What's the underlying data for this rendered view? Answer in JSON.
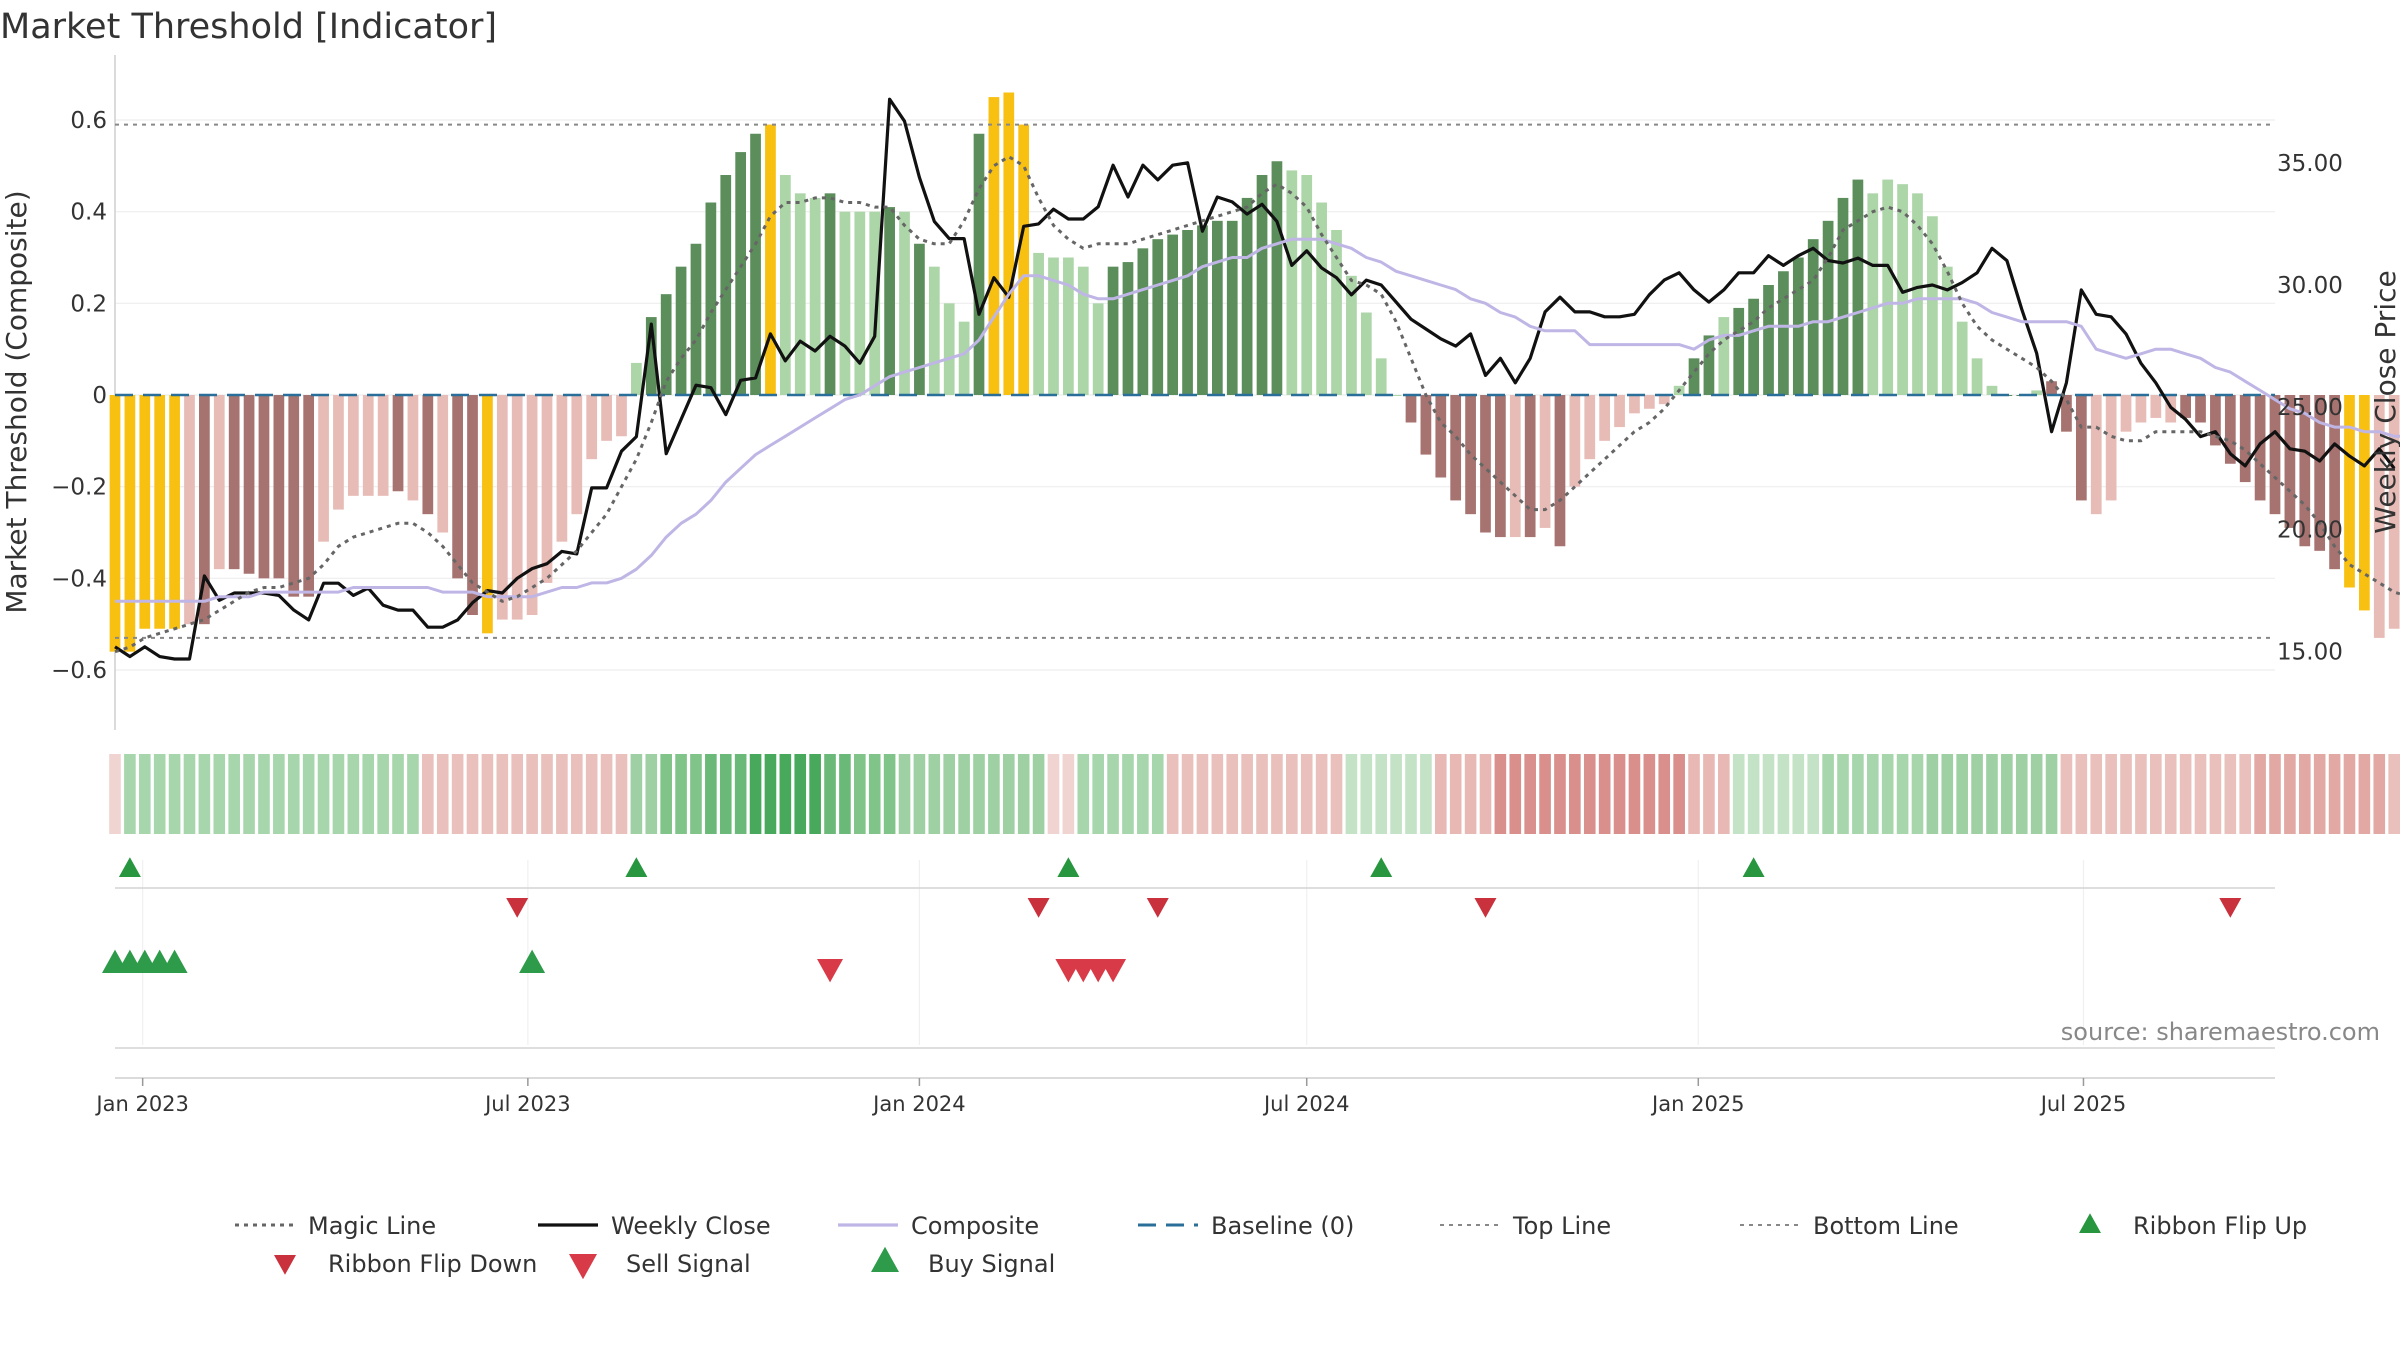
{
  "title": "Market Threshold [Indicator]",
  "source": "source: sharemaestro.com",
  "colors": {
    "highlight": "#f8c010",
    "pos_strong": "#5c8e5c",
    "pos_weak": "#acd5a8",
    "neg_strong": "#a67370",
    "neg_weak": "#e7bbb6",
    "magic": "#666666",
    "close": "#111111",
    "composite": "#bfb6e6",
    "baseline": "#2a6f9a",
    "ref": "#888888",
    "buy": "#2e9b4a",
    "sell": "#d93a48",
    "flip_up": "#27963f",
    "flip_down": "#c9313d"
  },
  "chart_data": {
    "type": "bar",
    "title": "Market Threshold [Indicator]",
    "ylabel_left": "Market Threshold (Composite)",
    "ylabel_right": "Weekly Close Price",
    "xlim": [
      "2022-12-19",
      "2025-09-29"
    ],
    "ylim_left": [
      -0.72,
      0.72
    ],
    "ylim_right": [
      12.0,
      39.0
    ],
    "yticks_left": [
      {
        "v": 0.6,
        "label": "0.6"
      },
      {
        "v": 0.4,
        "label": "0.4"
      },
      {
        "v": 0.2,
        "label": "0.2"
      },
      {
        "v": 0,
        "label": "0"
      },
      {
        "v": -0.2,
        "label": "−0.2"
      },
      {
        "v": -0.4,
        "label": "−0.4"
      },
      {
        "v": -0.6,
        "label": "−0.6"
      }
    ],
    "yticks_right": [
      {
        "v": 35,
        "label": "35.00"
      },
      {
        "v": 30,
        "label": "30.00"
      },
      {
        "v": 25,
        "label": "25.00"
      },
      {
        "v": 20,
        "label": "20.00"
      },
      {
        "v": 15,
        "label": "15.00"
      }
    ],
    "xticks": [
      {
        "date": "2023-01-01",
        "label": "Jan 2023"
      },
      {
        "date": "2023-07-01",
        "label": "Jul 2023"
      },
      {
        "date": "2024-01-01",
        "label": "Jan 2024"
      },
      {
        "date": "2024-07-01",
        "label": "Jul 2024"
      },
      {
        "date": "2025-01-01",
        "label": "Jan 2025"
      },
      {
        "date": "2025-07-01",
        "label": "Jul 2025"
      }
    ],
    "start_date": "2022-12-19",
    "interval_days": 7,
    "grid": true,
    "legend_position": "bottom",
    "top_line": 0.59,
    "bottom_line": -0.53,
    "baseline": 0,
    "composite_bars": [
      -0.56,
      -0.56,
      -0.51,
      -0.51,
      -0.51,
      -0.5,
      -0.5,
      -0.38,
      -0.38,
      -0.39,
      -0.4,
      -0.4,
      -0.44,
      -0.44,
      -0.32,
      -0.25,
      -0.22,
      -0.22,
      -0.22,
      -0.21,
      -0.23,
      -0.26,
      -0.3,
      -0.4,
      -0.48,
      -0.52,
      -0.49,
      -0.49,
      -0.48,
      -0.41,
      -0.32,
      -0.26,
      -0.14,
      -0.1,
      -0.09,
      0.07,
      0.17,
      0.22,
      0.28,
      0.33,
      0.42,
      0.48,
      0.53,
      0.57,
      0.59,
      0.48,
      0.44,
      0.43,
      0.44,
      0.4,
      0.4,
      0.4,
      0.41,
      0.4,
      0.33,
      0.28,
      0.2,
      0.16,
      0.57,
      0.65,
      0.66,
      0.59,
      0.31,
      0.3,
      0.3,
      0.28,
      0.2,
      0.28,
      0.29,
      0.32,
      0.34,
      0.35,
      0.36,
      0.37,
      0.38,
      0.38,
      0.43,
      0.48,
      0.51,
      0.49,
      0.48,
      0.42,
      0.36,
      0.26,
      0.18,
      0.08,
      0.0,
      -0.06,
      -0.13,
      -0.18,
      -0.23,
      -0.26,
      -0.3,
      -0.31,
      -0.31,
      -0.31,
      -0.29,
      -0.33,
      -0.2,
      -0.14,
      -0.1,
      -0.07,
      -0.04,
      -0.03,
      -0.02,
      0.02,
      0.08,
      0.13,
      0.17,
      0.19,
      0.21,
      0.24,
      0.27,
      0.3,
      0.34,
      0.38,
      0.43,
      0.47,
      0.44,
      0.47,
      0.46,
      0.44,
      0.39,
      0.28,
      0.16,
      0.08,
      0.02,
      0.0,
      0.0,
      0.01,
      0.03,
      -0.08,
      -0.23,
      -0.26,
      -0.23,
      -0.08,
      -0.06,
      -0.05,
      -0.06,
      -0.05,
      -0.06,
      -0.11,
      -0.15,
      -0.19,
      -0.23,
      -0.26,
      -0.29,
      -0.33,
      -0.34,
      -0.38,
      -0.42,
      -0.47,
      -0.53,
      -0.51,
      -0.5,
      -0.49,
      -0.42
    ],
    "bar_colors": [
      "highlight",
      "highlight",
      "highlight",
      "highlight",
      "highlight",
      "neg_weak",
      "neg_strong",
      "neg_weak",
      "neg_strong",
      "neg_strong",
      "neg_strong",
      "neg_strong",
      "neg_strong",
      "neg_strong",
      "neg_weak",
      "neg_weak",
      "neg_weak",
      "neg_weak",
      "neg_weak",
      "neg_strong",
      "neg_weak",
      "neg_strong",
      "neg_weak",
      "neg_strong",
      "neg_strong",
      "highlight",
      "neg_weak",
      "neg_weak",
      "neg_weak",
      "neg_weak",
      "neg_weak",
      "neg_weak",
      "neg_weak",
      "neg_weak",
      "neg_weak",
      "pos_weak",
      "pos_strong",
      "pos_strong",
      "pos_strong",
      "pos_strong",
      "pos_strong",
      "pos_strong",
      "pos_strong",
      "pos_strong",
      "highlight",
      "pos_weak",
      "pos_weak",
      "pos_weak",
      "pos_strong",
      "pos_weak",
      "pos_weak",
      "pos_weak",
      "pos_strong",
      "pos_weak",
      "pos_strong",
      "pos_weak",
      "pos_weak",
      "pos_weak",
      "pos_strong",
      "highlight",
      "highlight",
      "highlight",
      "pos_weak",
      "pos_weak",
      "pos_weak",
      "pos_weak",
      "pos_weak",
      "pos_strong",
      "pos_strong",
      "pos_strong",
      "pos_strong",
      "pos_strong",
      "pos_strong",
      "pos_strong",
      "pos_strong",
      "pos_strong",
      "pos_strong",
      "pos_strong",
      "pos_strong",
      "pos_weak",
      "pos_weak",
      "pos_weak",
      "pos_weak",
      "pos_weak",
      "pos_weak",
      "pos_weak",
      "pos_weak",
      "neg_strong",
      "neg_strong",
      "neg_strong",
      "neg_strong",
      "neg_strong",
      "neg_strong",
      "neg_strong",
      "neg_weak",
      "neg_strong",
      "neg_weak",
      "neg_strong",
      "neg_weak",
      "neg_weak",
      "neg_weak",
      "neg_weak",
      "neg_weak",
      "neg_weak",
      "neg_weak",
      "pos_weak",
      "pos_strong",
      "pos_strong",
      "pos_weak",
      "pos_strong",
      "pos_strong",
      "pos_strong",
      "pos_strong",
      "pos_strong",
      "pos_strong",
      "pos_strong",
      "pos_strong",
      "pos_strong",
      "pos_weak",
      "pos_weak",
      "pos_weak",
      "pos_weak",
      "pos_weak",
      "pos_weak",
      "pos_weak",
      "pos_weak",
      "pos_weak",
      "pos_strong",
      "pos_strong",
      "pos_weak",
      "neg_strong",
      "neg_strong",
      "neg_strong",
      "neg_weak",
      "neg_weak",
      "neg_weak",
      "neg_weak",
      "neg_weak",
      "neg_weak",
      "neg_strong",
      "neg_strong",
      "neg_strong",
      "neg_strong",
      "neg_strong",
      "neg_strong",
      "neg_strong",
      "neg_strong",
      "neg_strong",
      "neg_strong",
      "neg_strong",
      "highlight",
      "highlight",
      "neg_weak",
      "neg_weak",
      "neg_weak"
    ],
    "series": [
      {
        "name": "Weekly Close",
        "axis": "right",
        "values": [
          15.2,
          14.8,
          15.2,
          14.8,
          14.7,
          14.7,
          18.1,
          17.1,
          17.4,
          17.4,
          17.4,
          17.3,
          16.7,
          16.3,
          17.8,
          17.8,
          17.3,
          17.6,
          16.9,
          16.7,
          16.7,
          16.0,
          16.0,
          16.3,
          17.0,
          17.5,
          17.4,
          18.0,
          18.4,
          18.6,
          19.1,
          19.0,
          21.7,
          21.7,
          23.2,
          23.8,
          28.4,
          23.1,
          24.5,
          25.9,
          25.8,
          24.7,
          26.1,
          26.2,
          28.0,
          26.9,
          27.7,
          27.3,
          27.9,
          27.5,
          26.8,
          27.9,
          37.6,
          36.7,
          34.4,
          32.6,
          31.9,
          31.9,
          28.8,
          30.3,
          29.5,
          32.4,
          32.5,
          33.1,
          32.7,
          32.7,
          33.2,
          34.9,
          33.6,
          34.9,
          34.3,
          34.9,
          35.0,
          32.2,
          33.6,
          33.4,
          32.9,
          33.3,
          32.6,
          30.8,
          31.4,
          30.7,
          30.3,
          29.6,
          30.2,
          30.0,
          29.3,
          28.6,
          28.2,
          27.8,
          27.5,
          28.0,
          26.3,
          27.0,
          26.0,
          27.0,
          28.9,
          29.5,
          28.9,
          28.9,
          28.7,
          28.7,
          28.8,
          29.6,
          30.2,
          30.5,
          29.8,
          29.3,
          29.8,
          30.5,
          30.5,
          31.2,
          30.8,
          31.2,
          31.5,
          31.0,
          30.9,
          31.1,
          30.8,
          30.8,
          29.7,
          29.9,
          30.0,
          29.8,
          30.1,
          30.5,
          31.5,
          31.0,
          29.0,
          27.2,
          24.0,
          26.0,
          29.8,
          28.8,
          28.7,
          28.0,
          26.8,
          26.0,
          25.0,
          24.5,
          23.8,
          24.0,
          23.1,
          22.6,
          23.5,
          24.0,
          23.3,
          23.2,
          22.8,
          23.5,
          23.0,
          22.6,
          23.3,
          22.5
        ]
      },
      {
        "name": "Composite",
        "axis": "left",
        "values": [
          -0.45,
          -0.45,
          -0.45,
          -0.45,
          -0.45,
          -0.45,
          -0.45,
          -0.44,
          -0.44,
          -0.44,
          -0.43,
          -0.43,
          -0.43,
          -0.43,
          -0.43,
          -0.43,
          -0.42,
          -0.42,
          -0.42,
          -0.42,
          -0.42,
          -0.42,
          -0.43,
          -0.43,
          -0.43,
          -0.44,
          -0.44,
          -0.44,
          -0.44,
          -0.43,
          -0.42,
          -0.42,
          -0.41,
          -0.41,
          -0.4,
          -0.38,
          -0.35,
          -0.31,
          -0.28,
          -0.26,
          -0.23,
          -0.19,
          -0.16,
          -0.13,
          -0.11,
          -0.09,
          -0.07,
          -0.05,
          -0.03,
          -0.01,
          0.0,
          0.02,
          0.04,
          0.05,
          0.06,
          0.07,
          0.08,
          0.09,
          0.12,
          0.17,
          0.22,
          0.26,
          0.26,
          0.25,
          0.24,
          0.22,
          0.21,
          0.21,
          0.22,
          0.23,
          0.24,
          0.25,
          0.26,
          0.28,
          0.29,
          0.3,
          0.3,
          0.32,
          0.33,
          0.34,
          0.34,
          0.34,
          0.33,
          0.32,
          0.3,
          0.29,
          0.27,
          0.26,
          0.25,
          0.24,
          0.23,
          0.21,
          0.2,
          0.18,
          0.17,
          0.15,
          0.14,
          0.14,
          0.14,
          0.11,
          0.11,
          0.11,
          0.11,
          0.11,
          0.11,
          0.11,
          0.1,
          0.12,
          0.13,
          0.13,
          0.14,
          0.15,
          0.15,
          0.15,
          0.16,
          0.16,
          0.17,
          0.18,
          0.19,
          0.2,
          0.2,
          0.21,
          0.21,
          0.21,
          0.21,
          0.2,
          0.18,
          0.17,
          0.16,
          0.16,
          0.16,
          0.16,
          0.15,
          0.1,
          0.09,
          0.08,
          0.09,
          0.1,
          0.1,
          0.09,
          0.08,
          0.06,
          0.05,
          0.03,
          0.01,
          -0.01,
          -0.03,
          -0.04,
          -0.06,
          -0.07,
          -0.07,
          -0.08,
          -0.08,
          -0.09,
          -0.09,
          -0.1,
          -0.1,
          -0.1,
          -0.11
        ]
      },
      {
        "name": "Magic Line",
        "axis": "left",
        "values": [
          -0.56,
          -0.55,
          -0.53,
          -0.52,
          -0.51,
          -0.5,
          -0.49,
          -0.47,
          -0.45,
          -0.43,
          -0.42,
          -0.42,
          -0.41,
          -0.4,
          -0.37,
          -0.33,
          -0.31,
          -0.3,
          -0.29,
          -0.28,
          -0.28,
          -0.3,
          -0.33,
          -0.37,
          -0.41,
          -0.43,
          -0.45,
          -0.44,
          -0.42,
          -0.4,
          -0.37,
          -0.34,
          -0.3,
          -0.26,
          -0.2,
          -0.14,
          -0.06,
          0.03,
          0.08,
          0.12,
          0.18,
          0.23,
          0.28,
          0.33,
          0.39,
          0.42,
          0.42,
          0.43,
          0.43,
          0.42,
          0.42,
          0.41,
          0.41,
          0.37,
          0.34,
          0.33,
          0.33,
          0.38,
          0.45,
          0.5,
          0.52,
          0.5,
          0.43,
          0.37,
          0.34,
          0.32,
          0.33,
          0.33,
          0.33,
          0.34,
          0.35,
          0.36,
          0.37,
          0.38,
          0.39,
          0.4,
          0.41,
          0.44,
          0.46,
          0.44,
          0.41,
          0.35,
          0.3,
          0.25,
          0.24,
          0.22,
          0.16,
          0.08,
          0.0,
          -0.06,
          -0.09,
          -0.13,
          -0.16,
          -0.19,
          -0.22,
          -0.25,
          -0.25,
          -0.23,
          -0.2,
          -0.17,
          -0.14,
          -0.11,
          -0.08,
          -0.06,
          -0.03,
          0.01,
          0.05,
          0.09,
          0.12,
          0.14,
          0.16,
          0.19,
          0.21,
          0.23,
          0.25,
          0.3,
          0.36,
          0.38,
          0.4,
          0.41,
          0.4,
          0.37,
          0.33,
          0.27,
          0.2,
          0.15,
          0.12,
          0.1,
          0.08,
          0.06,
          0.03,
          -0.01,
          -0.07,
          -0.07,
          -0.09,
          -0.1,
          -0.1,
          -0.08,
          -0.08,
          -0.08,
          -0.08,
          -0.09,
          -0.1,
          -0.12,
          -0.15,
          -0.18,
          -0.21,
          -0.24,
          -0.28,
          -0.33,
          -0.37,
          -0.39,
          -0.41,
          -0.43,
          -0.44,
          -0.43
        ]
      }
    ],
    "ribbon": [
      "#f0d4d1",
      "#a7d6ad",
      "#a7d6ad",
      "#a7d6ad",
      "#a7d6ad",
      "#a7d6ad",
      "#a7d6ad",
      "#a7d6ad",
      "#a7d6ad",
      "#a7d6ad",
      "#a7d6ad",
      "#a7d6ad",
      "#a7d6ad",
      "#a7d6ad",
      "#a7d6ad",
      "#a7d6ad",
      "#a7d6ad",
      "#a7d6ad",
      "#a7d6ad",
      "#a7d6ad",
      "#a7d6ad",
      "#e9c0bb",
      "#e9c0bb",
      "#e9c0bb",
      "#e9c0bb",
      "#e9c0bb",
      "#e9c0bb",
      "#e9c0bb",
      "#e9c0bb",
      "#e9c0bb",
      "#e9c0bb",
      "#e9c0bb",
      "#e9c0bb",
      "#e9c0bb",
      "#e9c0bb",
      "#9ed0a4",
      "#9ed0a4",
      "#80c489",
      "#80c489",
      "#80c489",
      "#6ab978",
      "#6ab978",
      "#6ab978",
      "#48a85c",
      "#48a85c",
      "#48a85c",
      "#48a85c",
      "#48a85c",
      "#6ab978",
      "#6ab978",
      "#80c489",
      "#80c489",
      "#80c489",
      "#9ed0a4",
      "#9ed0a4",
      "#9ed0a4",
      "#9ed0a4",
      "#9ed0a4",
      "#9ed0a4",
      "#9ed0a4",
      "#9ed0a4",
      "#9ed0a4",
      "#9ed0a4",
      "#f0d4d1",
      "#f0d4d1",
      "#a7d6ad",
      "#a7d6ad",
      "#a7d6ad",
      "#a7d6ad",
      "#a7d6ad",
      "#a7d6ad",
      "#e9c0bb",
      "#e9c0bb",
      "#e9c0bb",
      "#e9c0bb",
      "#e9c0bb",
      "#e9c0bb",
      "#e9c0bb",
      "#e9c0bb",
      "#e9c0bb",
      "#e9c0bb",
      "#e9c0bb",
      "#e9c0bb",
      "#c4e2c5",
      "#c4e2c5",
      "#c4e2c5",
      "#c4e2c5",
      "#c4e2c5",
      "#c4e2c5",
      "#e8b9b4",
      "#e8b9b4",
      "#e8b9b4",
      "#e8b9b4",
      "#d98f8b",
      "#d98f8b",
      "#d98f8b",
      "#d98f8b",
      "#d98f8b",
      "#d98f8b",
      "#d98f8b",
      "#d98f8b",
      "#d98f8b",
      "#d98f8b",
      "#d98f8b",
      "#d98f8b",
      "#d98f8b",
      "#e8b9b4",
      "#e8b9b4",
      "#e8b9b4",
      "#c4e2c5",
      "#c4e2c5",
      "#c4e2c5",
      "#c4e2c5",
      "#c4e2c5",
      "#c4e2c5",
      "#a7d6ad",
      "#a7d6ad",
      "#a7d6ad",
      "#a7d6ad",
      "#a7d6ad",
      "#a7d6ad",
      "#a7d6ad",
      "#9ed0a4",
      "#9ed0a4",
      "#9ed0a4",
      "#9ed0a4",
      "#9ed0a4",
      "#9ed0a4",
      "#9ed0a4",
      "#9ed0a4",
      "#9ed0a4",
      "#e9c0bb",
      "#e9c0bb",
      "#e9c0bb",
      "#e9c0bb",
      "#e9c0bb",
      "#e9c0bb",
      "#e9c0bb",
      "#e9c0bb",
      "#e9c0bb",
      "#e9c0bb",
      "#e9c0bb",
      "#e9c0bb",
      "#e9c0bb",
      "#e2a9a4",
      "#e2a9a4",
      "#e2a9a4",
      "#e2a9a4",
      "#e2a9a4",
      "#e2a9a4",
      "#e2a9a4",
      "#e2a9a4",
      "#e2a9a4",
      "#e9c0bb",
      "#e9c0bb",
      "#e2a9a4",
      "#e2a9a4",
      "#e2a9a4",
      "#e2a9a4",
      "#e2a9a4",
      "#e2a9a4",
      "#e2a9a4",
      "#e2a9a4",
      "#e2a9a4"
    ],
    "ribbon_flip_up": [
      1,
      35,
      64,
      85,
      110
    ],
    "ribbon_flip_down": [
      27,
      62,
      70,
      92,
      142
    ],
    "buy_signals": [
      0,
      1,
      2,
      3,
      4,
      28,
      176,
      177
    ],
    "sell_signals": [
      48,
      64,
      65,
      66,
      67
    ]
  },
  "legend": [
    {
      "label": "Magic Line",
      "style": "dotted",
      "color": "magic"
    },
    {
      "label": "Weekly Close",
      "style": "solid",
      "color": "close"
    },
    {
      "label": "Composite",
      "style": "solid",
      "color": "composite"
    },
    {
      "label": "Baseline (0)",
      "style": "dashed",
      "color": "baseline"
    },
    {
      "label": "Top Line",
      "style": "dotted-light",
      "color": "ref"
    },
    {
      "label": "Bottom Line",
      "style": "dotted-light",
      "color": "ref"
    },
    {
      "label": "Ribbon Flip Up",
      "style": "tri-up",
      "color": "flip_up"
    },
    {
      "label": "Ribbon Flip Down",
      "style": "tri-down",
      "color": "flip_down"
    },
    {
      "label": "Sell Signal",
      "style": "tri-down-big",
      "color": "sell"
    },
    {
      "label": "Buy Signal",
      "style": "tri-up-big",
      "color": "buy"
    }
  ]
}
